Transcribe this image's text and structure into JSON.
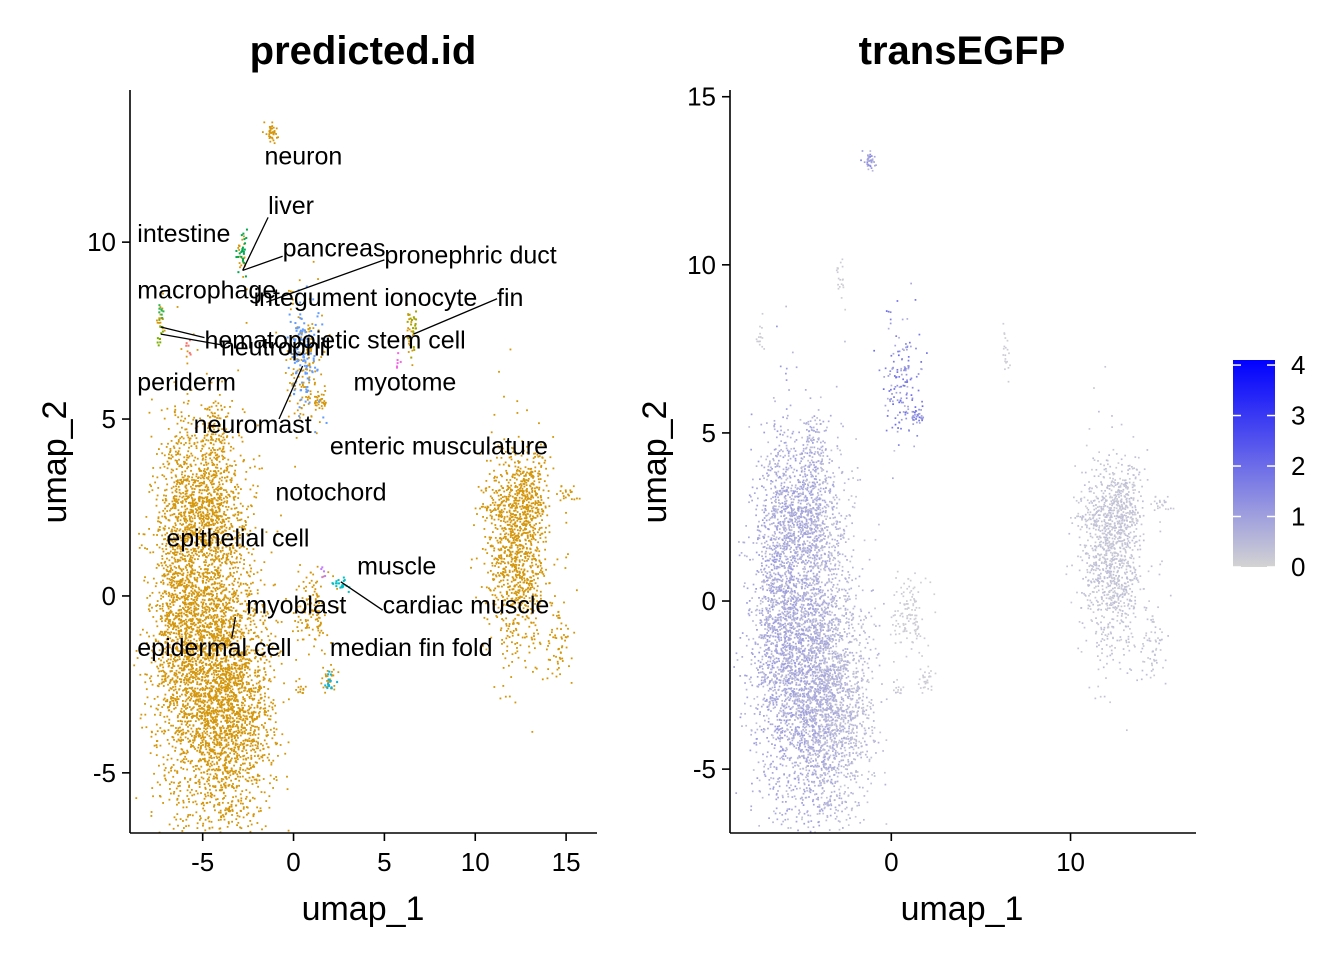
{
  "chart_data": [
    {
      "type": "scatter",
      "title": "predicted.id",
      "xlabel": "umap_1",
      "ylabel": "umap_2",
      "xlim": [
        -9,
        16.7
      ],
      "ylim": [
        -6.7,
        14.3
      ],
      "xticks": [
        -5,
        0,
        5,
        10,
        15
      ],
      "yticks": [
        -5,
        0,
        5,
        10
      ],
      "xtick_labels": [
        "-5",
        "0",
        "5",
        "10",
        "15"
      ],
      "ytick_labels": [
        "-5",
        "0",
        "5",
        "10"
      ],
      "point_color": "#D4960B",
      "labels": [
        {
          "text": "neuron",
          "x": -1.6,
          "y": 12.2
        },
        {
          "text": "liver",
          "x": -1.4,
          "y": 10.8
        },
        {
          "text": "intestine",
          "x": -8.6,
          "y": 10.0
        },
        {
          "text": "pancreas",
          "x": -0.6,
          "y": 9.6
        },
        {
          "text": "pronephric duct",
          "x": 5.0,
          "y": 9.4
        },
        {
          "text": "macrophage",
          "x": -8.6,
          "y": 8.4
        },
        {
          "text": "integument ionocyte",
          "x": -2.2,
          "y": 8.2
        },
        {
          "text": "fin",
          "x": 11.2,
          "y": 8.2
        },
        {
          "text": "hematopoietic stem cell",
          "x": -4.9,
          "y": 7.0
        },
        {
          "text": "neutrophil",
          "x": -4.0,
          "y": 6.8
        },
        {
          "text": "periderm",
          "x": -8.6,
          "y": 5.8
        },
        {
          "text": "myotome",
          "x": 3.3,
          "y": 5.8
        },
        {
          "text": "neuromast",
          "x": -5.5,
          "y": 4.6
        },
        {
          "text": "enteric musculature",
          "x": 2.0,
          "y": 4.0
        },
        {
          "text": "notochord",
          "x": -1.0,
          "y": 2.7
        },
        {
          "text": "epithelial cell",
          "x": -7.0,
          "y": 1.4
        },
        {
          "text": "muscle",
          "x": 3.5,
          "y": 0.6
        },
        {
          "text": "myoblast",
          "x": -2.6,
          "y": -0.5
        },
        {
          "text": "cardiac muscle",
          "x": 4.9,
          "y": -0.5
        },
        {
          "text": "epidermal cell",
          "x": -8.6,
          "y": -1.7
        },
        {
          "text": "median fin fold",
          "x": 2.0,
          "y": -1.7
        }
      ],
      "leaders": [
        {
          "from": [
            -1.4,
            10.7
          ],
          "to": [
            -2.8,
            9.2
          ]
        },
        {
          "from": [
            -0.6,
            9.6
          ],
          "to": [
            -2.8,
            9.2
          ]
        },
        {
          "from": [
            5.0,
            9.5
          ],
          "to": [
            -1.5,
            8.3
          ]
        },
        {
          "from": [
            11.2,
            8.4
          ],
          "to": [
            6.6,
            7.4
          ]
        },
        {
          "from": [
            -4.9,
            7.3
          ],
          "to": [
            -7.3,
            7.6
          ]
        },
        {
          "from": [
            -4.0,
            7.1
          ],
          "to": [
            -7.3,
            7.4
          ]
        },
        {
          "from": [
            -0.8,
            5.0
          ],
          "to": [
            0.5,
            6.5
          ]
        },
        {
          "from": [
            4.9,
            -0.4
          ],
          "to": [
            2.6,
            0.4
          ]
        },
        {
          "from": [
            -3.2,
            -0.6
          ],
          "to": [
            -3.4,
            -1.2
          ]
        }
      ],
      "minor_clusters": [
        {
          "name": "liver",
          "color": "#00A84F",
          "x": -2.8,
          "y": 9.7,
          "sx": 0.15,
          "sy": 0.3,
          "n": 25
        },
        {
          "name": "intestine",
          "color": "#2FB34A",
          "x": -7.3,
          "y": 8.1,
          "sx": 0.08,
          "sy": 0.15,
          "n": 8
        },
        {
          "name": "hematopoietic",
          "color": "#7CAE00",
          "x": -7.3,
          "y": 7.5,
          "sx": 0.1,
          "sy": 0.2,
          "n": 12
        },
        {
          "name": "macrophage",
          "color": "#F8766D",
          "x": -5.8,
          "y": 6.9,
          "sx": 0.12,
          "sy": 0.12,
          "n": 6
        },
        {
          "name": "pronephric",
          "color": "#A3A500",
          "x": 6.6,
          "y": 7.6,
          "sx": 0.12,
          "sy": 0.4,
          "n": 20
        },
        {
          "name": "periderm",
          "color": "#F564E3",
          "x": 5.8,
          "y": 6.8,
          "sx": 0.1,
          "sy": 0.2,
          "n": 6
        },
        {
          "name": "neuromast",
          "color": "#619CFF",
          "x": 0.6,
          "y": 6.9,
          "sx": 0.5,
          "sy": 0.8,
          "n": 120
        },
        {
          "name": "muscle",
          "color": "#00BFC4",
          "x": 2.7,
          "y": 0.3,
          "sx": 0.25,
          "sy": 0.12,
          "n": 20
        },
        {
          "name": "median fin fold",
          "color": "#00B8E7",
          "x": 2.0,
          "y": -2.4,
          "sx": 0.15,
          "sy": 0.15,
          "n": 15
        },
        {
          "name": "fin",
          "color": "#C77CFF",
          "x": 1.6,
          "y": 0.6,
          "sx": 0.08,
          "sy": 0.1,
          "n": 5
        }
      ]
    },
    {
      "type": "scatter",
      "title": "transEGFP",
      "xlabel": "umap_1",
      "ylabel": "umap_2",
      "xlim": [
        -9,
        17
      ],
      "ylim": [
        -6.9,
        15.2
      ],
      "xticks": [
        0,
        10
      ],
      "yticks": [
        -5,
        0,
        5,
        10,
        15
      ],
      "xtick_labels": [
        "0",
        "10"
      ],
      "ytick_labels": [
        "-5",
        "0",
        "5",
        "10",
        "15"
      ],
      "legend": {
        "placement": "right",
        "min": 0,
        "max": 4.1,
        "ticks": [
          0,
          1,
          2,
          3,
          4
        ],
        "tick_labels": [
          "0",
          "1",
          "2",
          "3",
          "4"
        ],
        "low_color": "#D3D3D3",
        "high_color": "#0000FF"
      }
    }
  ]
}
